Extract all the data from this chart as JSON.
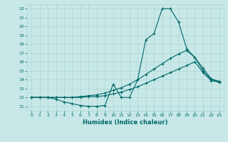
{
  "xlabel": "Humidex (Indice chaleur)",
  "bg_color": "#c8e8e8",
  "grid_color": "#b0d8d8",
  "line_color": "#006868",
  "xlim": [
    -0.5,
    23.5
  ],
  "ylim": [
    10.5,
    22.5
  ],
  "yticks": [
    11,
    12,
    13,
    14,
    15,
    16,
    17,
    18,
    19,
    20,
    21,
    22
  ],
  "xticks": [
    0,
    1,
    2,
    3,
    4,
    5,
    6,
    7,
    8,
    9,
    10,
    11,
    12,
    13,
    14,
    15,
    16,
    17,
    18,
    19,
    20,
    21,
    22,
    23
  ],
  "line1_x": [
    0,
    1,
    2,
    3,
    4,
    5,
    6,
    7,
    8,
    9,
    10,
    11,
    12,
    13,
    14,
    15,
    16,
    17,
    18,
    19,
    20,
    21,
    22,
    23
  ],
  "line1_y": [
    12,
    12,
    12,
    11.8,
    11.5,
    11.3,
    11.1,
    11.0,
    11.0,
    11.1,
    13.5,
    12.0,
    12.0,
    14.0,
    18.5,
    19.2,
    22.0,
    22.0,
    20.5,
    17.5,
    16.5,
    15.0,
    14.0,
    13.8
  ],
  "line2_x": [
    0,
    1,
    2,
    3,
    4,
    5,
    6,
    7,
    8,
    9,
    10,
    11,
    12,
    13,
    14,
    15,
    16,
    17,
    18,
    19,
    20,
    21,
    22,
    23
  ],
  "line2_y": [
    12,
    12,
    12,
    12,
    12,
    12.0,
    12.1,
    12.2,
    12.3,
    12.5,
    12.8,
    13.1,
    13.5,
    14.0,
    14.6,
    15.2,
    15.8,
    16.4,
    16.9,
    17.3,
    16.5,
    15.3,
    14.1,
    13.8
  ],
  "line3_x": [
    0,
    1,
    2,
    3,
    4,
    5,
    6,
    7,
    8,
    9,
    10,
    11,
    12,
    13,
    14,
    15,
    16,
    17,
    18,
    19,
    20,
    21,
    22,
    23
  ],
  "line3_y": [
    12,
    12,
    12,
    12,
    12,
    12.0,
    12.0,
    12.1,
    12.1,
    12.2,
    12.4,
    12.6,
    12.9,
    13.2,
    13.6,
    14.0,
    14.4,
    14.8,
    15.2,
    15.6,
    16.0,
    14.8,
    13.9,
    13.7
  ]
}
